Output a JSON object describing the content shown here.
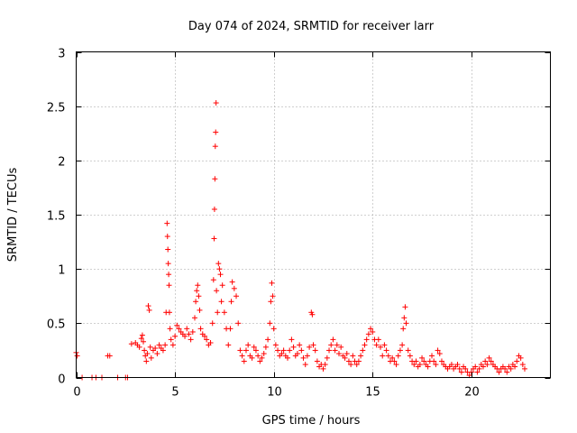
{
  "chart_data": {
    "type": "scatter",
    "title": "Day 074 of 2024, SRMTID for receiver larr",
    "xlabel": "GPS time / hours",
    "ylabel": "SRMTID / TECUs",
    "xlim": [
      0,
      24
    ],
    "ylim": [
      0,
      3
    ],
    "xticks": [
      0,
      5,
      10,
      15,
      20
    ],
    "xtick_labels": [
      "0",
      "5",
      "10",
      "15",
      "20"
    ],
    "yticks": [
      0,
      0.5,
      1,
      1.5,
      2,
      2.5,
      3
    ],
    "ytick_labels": [
      "0",
      "0.5",
      "1",
      "1.5",
      "2",
      "2.5",
      "3"
    ],
    "grid": true,
    "marker": "+",
    "series": [
      {
        "name": "SRMTID",
        "color": "#ff0000",
        "points": [
          [
            0.0,
            0.23
          ],
          [
            0.05,
            0.2
          ],
          [
            0.3,
            0.0
          ],
          [
            0.8,
            0.0
          ],
          [
            1.0,
            0.0
          ],
          [
            1.3,
            0.0
          ],
          [
            1.6,
            0.2
          ],
          [
            1.7,
            0.2
          ],
          [
            2.1,
            0.0
          ],
          [
            2.5,
            0.0
          ],
          [
            2.6,
            0.0
          ],
          [
            2.8,
            0.31
          ],
          [
            3.0,
            0.32
          ],
          [
            3.1,
            0.3
          ],
          [
            3.2,
            0.28
          ],
          [
            3.3,
            0.36
          ],
          [
            3.35,
            0.39
          ],
          [
            3.4,
            0.33
          ],
          [
            3.45,
            0.25
          ],
          [
            3.5,
            0.2
          ],
          [
            3.55,
            0.15
          ],
          [
            3.6,
            0.22
          ],
          [
            3.65,
            0.66
          ],
          [
            3.7,
            0.62
          ],
          [
            3.75,
            0.28
          ],
          [
            3.8,
            0.18
          ],
          [
            3.9,
            0.25
          ],
          [
            4.0,
            0.27
          ],
          [
            4.1,
            0.22
          ],
          [
            4.2,
            0.3
          ],
          [
            4.3,
            0.27
          ],
          [
            4.4,
            0.25
          ],
          [
            4.5,
            0.3
          ],
          [
            4.55,
            0.6
          ],
          [
            4.6,
            1.42
          ],
          [
            4.62,
            1.3
          ],
          [
            4.64,
            1.18
          ],
          [
            4.66,
            1.05
          ],
          [
            4.68,
            0.95
          ],
          [
            4.7,
            0.85
          ],
          [
            4.72,
            0.6
          ],
          [
            4.75,
            0.45
          ],
          [
            4.8,
            0.35
          ],
          [
            4.9,
            0.3
          ],
          [
            5.0,
            0.38
          ],
          [
            5.1,
            0.48
          ],
          [
            5.2,
            0.45
          ],
          [
            5.3,
            0.42
          ],
          [
            5.4,
            0.4
          ],
          [
            5.5,
            0.38
          ],
          [
            5.6,
            0.45
          ],
          [
            5.7,
            0.4
          ],
          [
            5.8,
            0.35
          ],
          [
            5.9,
            0.42
          ],
          [
            6.0,
            0.55
          ],
          [
            6.05,
            0.7
          ],
          [
            6.1,
            0.8
          ],
          [
            6.15,
            0.85
          ],
          [
            6.2,
            0.75
          ],
          [
            6.25,
            0.62
          ],
          [
            6.3,
            0.45
          ],
          [
            6.4,
            0.4
          ],
          [
            6.5,
            0.38
          ],
          [
            6.6,
            0.35
          ],
          [
            6.7,
            0.3
          ],
          [
            6.8,
            0.32
          ],
          [
            6.9,
            0.5
          ],
          [
            6.95,
            0.9
          ],
          [
            6.98,
            1.28
          ],
          [
            7.0,
            1.55
          ],
          [
            7.02,
            1.83
          ],
          [
            7.04,
            2.13
          ],
          [
            7.06,
            2.26
          ],
          [
            7.08,
            2.53
          ],
          [
            7.1,
            0.8
          ],
          [
            7.15,
            0.6
          ],
          [
            7.2,
            1.05
          ],
          [
            7.25,
            1.0
          ],
          [
            7.3,
            0.95
          ],
          [
            7.35,
            0.7
          ],
          [
            7.4,
            0.85
          ],
          [
            7.5,
            0.6
          ],
          [
            7.6,
            0.45
          ],
          [
            7.7,
            0.3
          ],
          [
            7.8,
            0.45
          ],
          [
            7.85,
            0.7
          ],
          [
            7.9,
            0.88
          ],
          [
            8.0,
            0.82
          ],
          [
            8.1,
            0.75
          ],
          [
            8.2,
            0.5
          ],
          [
            8.3,
            0.25
          ],
          [
            8.4,
            0.2
          ],
          [
            8.5,
            0.15
          ],
          [
            8.6,
            0.25
          ],
          [
            8.7,
            0.3
          ],
          [
            8.8,
            0.2
          ],
          [
            8.9,
            0.18
          ],
          [
            9.0,
            0.28
          ],
          [
            9.1,
            0.25
          ],
          [
            9.2,
            0.2
          ],
          [
            9.3,
            0.15
          ],
          [
            9.4,
            0.18
          ],
          [
            9.5,
            0.22
          ],
          [
            9.6,
            0.28
          ],
          [
            9.7,
            0.35
          ],
          [
            9.8,
            0.5
          ],
          [
            9.85,
            0.7
          ],
          [
            9.9,
            0.87
          ],
          [
            9.95,
            0.75
          ],
          [
            10.0,
            0.45
          ],
          [
            10.1,
            0.3
          ],
          [
            10.2,
            0.25
          ],
          [
            10.3,
            0.2
          ],
          [
            10.4,
            0.22
          ],
          [
            10.5,
            0.25
          ],
          [
            10.6,
            0.2
          ],
          [
            10.7,
            0.18
          ],
          [
            10.8,
            0.25
          ],
          [
            10.9,
            0.35
          ],
          [
            11.0,
            0.28
          ],
          [
            11.1,
            0.2
          ],
          [
            11.2,
            0.22
          ],
          [
            11.3,
            0.3
          ],
          [
            11.4,
            0.25
          ],
          [
            11.5,
            0.18
          ],
          [
            11.6,
            0.12
          ],
          [
            11.7,
            0.2
          ],
          [
            11.8,
            0.28
          ],
          [
            11.9,
            0.6
          ],
          [
            11.95,
            0.58
          ],
          [
            12.0,
            0.3
          ],
          [
            12.1,
            0.25
          ],
          [
            12.2,
            0.15
          ],
          [
            12.3,
            0.1
          ],
          [
            12.4,
            0.12
          ],
          [
            12.5,
            0.08
          ],
          [
            12.6,
            0.12
          ],
          [
            12.7,
            0.18
          ],
          [
            12.8,
            0.25
          ],
          [
            12.9,
            0.3
          ],
          [
            13.0,
            0.35
          ],
          [
            13.1,
            0.25
          ],
          [
            13.2,
            0.3
          ],
          [
            13.3,
            0.22
          ],
          [
            13.4,
            0.28
          ],
          [
            13.5,
            0.2
          ],
          [
            13.6,
            0.18
          ],
          [
            13.7,
            0.22
          ],
          [
            13.8,
            0.15
          ],
          [
            13.9,
            0.12
          ],
          [
            14.0,
            0.2
          ],
          [
            14.1,
            0.15
          ],
          [
            14.2,
            0.12
          ],
          [
            14.3,
            0.15
          ],
          [
            14.4,
            0.2
          ],
          [
            14.5,
            0.25
          ],
          [
            14.6,
            0.3
          ],
          [
            14.7,
            0.35
          ],
          [
            14.8,
            0.4
          ],
          [
            14.9,
            0.45
          ],
          [
            15.0,
            0.42
          ],
          [
            15.1,
            0.35
          ],
          [
            15.2,
            0.3
          ],
          [
            15.3,
            0.35
          ],
          [
            15.4,
            0.28
          ],
          [
            15.5,
            0.2
          ],
          [
            15.6,
            0.3
          ],
          [
            15.7,
            0.25
          ],
          [
            15.8,
            0.2
          ],
          [
            15.9,
            0.15
          ],
          [
            16.0,
            0.18
          ],
          [
            16.1,
            0.15
          ],
          [
            16.2,
            0.12
          ],
          [
            16.3,
            0.2
          ],
          [
            16.4,
            0.25
          ],
          [
            16.5,
            0.3
          ],
          [
            16.55,
            0.45
          ],
          [
            16.6,
            0.55
          ],
          [
            16.65,
            0.65
          ],
          [
            16.7,
            0.5
          ],
          [
            16.8,
            0.25
          ],
          [
            16.9,
            0.2
          ],
          [
            17.0,
            0.15
          ],
          [
            17.1,
            0.12
          ],
          [
            17.2,
            0.15
          ],
          [
            17.3,
            0.1
          ],
          [
            17.4,
            0.12
          ],
          [
            17.5,
            0.18
          ],
          [
            17.6,
            0.15
          ],
          [
            17.7,
            0.12
          ],
          [
            17.8,
            0.1
          ],
          [
            17.9,
            0.15
          ],
          [
            18.0,
            0.2
          ],
          [
            18.1,
            0.15
          ],
          [
            18.2,
            0.12
          ],
          [
            18.3,
            0.25
          ],
          [
            18.4,
            0.22
          ],
          [
            18.5,
            0.15
          ],
          [
            18.6,
            0.12
          ],
          [
            18.7,
            0.1
          ],
          [
            18.8,
            0.08
          ],
          [
            18.9,
            0.1
          ],
          [
            19.0,
            0.12
          ],
          [
            19.1,
            0.08
          ],
          [
            19.2,
            0.1
          ],
          [
            19.3,
            0.12
          ],
          [
            19.4,
            0.08
          ],
          [
            19.5,
            0.05
          ],
          [
            19.6,
            0.1
          ],
          [
            19.7,
            0.08
          ],
          [
            19.8,
            0.05
          ],
          [
            19.9,
            0.02
          ],
          [
            20.0,
            0.05
          ],
          [
            20.1,
            0.08
          ],
          [
            20.2,
            0.1
          ],
          [
            20.3,
            0.05
          ],
          [
            20.4,
            0.08
          ],
          [
            20.5,
            0.12
          ],
          [
            20.6,
            0.1
          ],
          [
            20.7,
            0.15
          ],
          [
            20.8,
            0.12
          ],
          [
            20.9,
            0.18
          ],
          [
            21.0,
            0.15
          ],
          [
            21.1,
            0.12
          ],
          [
            21.2,
            0.1
          ],
          [
            21.3,
            0.08
          ],
          [
            21.4,
            0.05
          ],
          [
            21.5,
            0.08
          ],
          [
            21.6,
            0.1
          ],
          [
            21.7,
            0.08
          ],
          [
            21.8,
            0.05
          ],
          [
            21.9,
            0.1
          ],
          [
            22.0,
            0.08
          ],
          [
            22.1,
            0.12
          ],
          [
            22.2,
            0.1
          ],
          [
            22.3,
            0.15
          ],
          [
            22.4,
            0.2
          ],
          [
            22.5,
            0.18
          ],
          [
            22.6,
            0.12
          ],
          [
            22.7,
            0.08
          ]
        ]
      }
    ]
  }
}
